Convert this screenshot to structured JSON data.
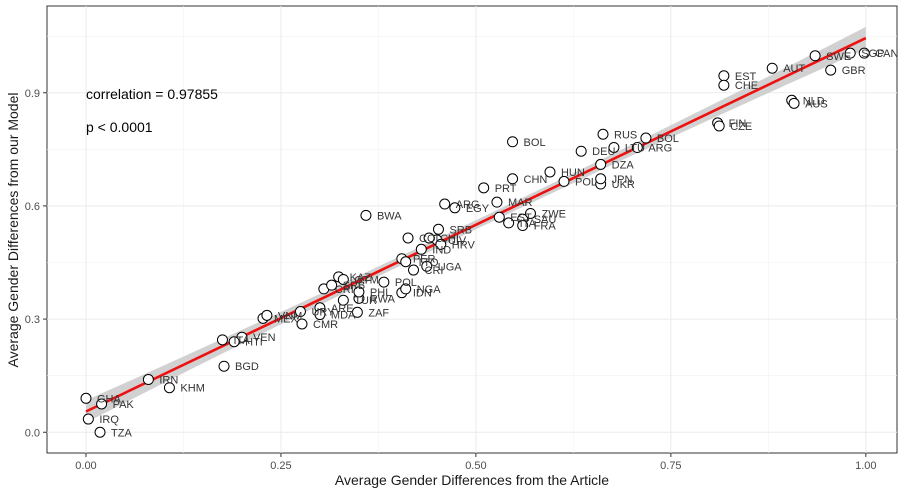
{
  "chart_data": {
    "type": "scatter",
    "xlabel": "Average Gender Differences from the Article",
    "ylabel": "Average Gender Differences from our Model",
    "xlim": [
      -0.05,
      1.04
    ],
    "ylim": [
      -0.055,
      1.13
    ],
    "x_ticks": [
      0.0,
      0.25,
      0.5,
      0.75,
      1.0
    ],
    "x_tick_labels": [
      "0.00",
      "0.25",
      "0.50",
      "0.75",
      "1.00"
    ],
    "y_ticks": [
      0.0,
      0.3,
      0.6,
      0.9
    ],
    "y_tick_labels": [
      "0.0",
      "0.3",
      "0.6",
      "0.9"
    ],
    "grid": true,
    "annotations": [
      "correlation = 0.97855",
      "p < 0.0001"
    ],
    "fit_line": {
      "color": "#ee1111",
      "start": [
        0.0,
        0.055
      ],
      "end": [
        1.0,
        1.045
      ],
      "ci_color": "#cccccc"
    },
    "points": [
      {
        "label": "GHA",
        "x": 0.0,
        "y": 0.09
      },
      {
        "label": "PAK",
        "x": 0.02,
        "y": 0.075
      },
      {
        "label": "IRQ",
        "x": 0.003,
        "y": 0.035
      },
      {
        "label": "TZA",
        "x": 0.018,
        "y": 0.0
      },
      {
        "label": "IRN",
        "x": 0.08,
        "y": 0.14
      },
      {
        "label": "KHM",
        "x": 0.107,
        "y": 0.118
      },
      {
        "label": "BGD",
        "x": 0.177,
        "y": 0.175
      },
      {
        "label": "ITA",
        "x": 0.175,
        "y": 0.245
      },
      {
        "label": "VEN",
        "x": 0.2,
        "y": 0.252
      },
      {
        "label": "HTI",
        "x": 0.19,
        "y": 0.24
      },
      {
        "label": "MEX",
        "x": 0.227,
        "y": 0.302
      },
      {
        "label": "VNM",
        "x": 0.232,
        "y": 0.31
      },
      {
        "label": "CMR",
        "x": 0.277,
        "y": 0.287
      },
      {
        "label": "URY",
        "x": 0.275,
        "y": 0.32
      },
      {
        "label": "ARE",
        "x": 0.3,
        "y": 0.33
      },
      {
        "label": "MDA",
        "x": 0.3,
        "y": 0.312
      },
      {
        "label": "ZAF",
        "x": 0.348,
        "y": 0.318
      },
      {
        "label": "TUR",
        "x": 0.33,
        "y": 0.35
      },
      {
        "label": "RWA",
        "x": 0.35,
        "y": 0.355
      },
      {
        "label": "PHL",
        "x": 0.35,
        "y": 0.372
      },
      {
        "label": "IDN",
        "x": 0.405,
        "y": 0.37
      },
      {
        "label": "CRI",
        "x": 0.305,
        "y": 0.38
      },
      {
        "label": "POL",
        "x": 0.382,
        "y": 0.398
      },
      {
        "label": "NGA",
        "x": 0.41,
        "y": 0.38
      },
      {
        "label": "KAZ",
        "x": 0.324,
        "y": 0.412
      },
      {
        "label": "GTM",
        "x": 0.33,
        "y": 0.405
      },
      {
        "label": "SRB",
        "x": 0.315,
        "y": 0.39
      },
      {
        "label": "CRI",
        "x": 0.42,
        "y": 0.43
      },
      {
        "label": "UGA",
        "x": 0.437,
        "y": 0.44
      },
      {
        "label": "PER",
        "x": 0.405,
        "y": 0.46
      },
      {
        "label": "TTO",
        "x": 0.41,
        "y": 0.452
      },
      {
        "label": "IND",
        "x": 0.43,
        "y": 0.485
      },
      {
        "label": "CIV",
        "x": 0.45,
        "y": 0.51
      },
      {
        "label": "HRV",
        "x": 0.455,
        "y": 0.498
      },
      {
        "label": "SRB",
        "x": 0.452,
        "y": 0.538
      },
      {
        "label": "COL",
        "x": 0.413,
        "y": 0.515
      },
      {
        "label": "CHL",
        "x": 0.44,
        "y": 0.515
      },
      {
        "label": "BWA",
        "x": 0.359,
        "y": 0.575
      },
      {
        "label": "ARG",
        "x": 0.46,
        "y": 0.605
      },
      {
        "label": "EGY",
        "x": 0.473,
        "y": 0.595
      },
      {
        "label": "MAR",
        "x": 0.527,
        "y": 0.61
      },
      {
        "label": "EST",
        "x": 0.53,
        "y": 0.57
      },
      {
        "label": "SAU",
        "x": 0.56,
        "y": 0.565
      },
      {
        "label": "ZWE",
        "x": 0.57,
        "y": 0.58
      },
      {
        "label": "ITA",
        "x": 0.542,
        "y": 0.555
      },
      {
        "label": "FRA",
        "x": 0.56,
        "y": 0.548
      },
      {
        "label": "PRT",
        "x": 0.51,
        "y": 0.648
      },
      {
        "label": "CHN",
        "x": 0.547,
        "y": 0.672
      },
      {
        "label": "HUN",
        "x": 0.595,
        "y": 0.69
      },
      {
        "label": "POL",
        "x": 0.613,
        "y": 0.665
      },
      {
        "label": "UKR",
        "x": 0.66,
        "y": 0.658
      },
      {
        "label": "JPN",
        "x": 0.66,
        "y": 0.672
      },
      {
        "label": "DZA",
        "x": 0.66,
        "y": 0.71
      },
      {
        "label": "DEU",
        "x": 0.635,
        "y": 0.745
      },
      {
        "label": "LTU",
        "x": 0.677,
        "y": 0.755
      },
      {
        "label": "BOL",
        "x": 0.547,
        "y": 0.77
      },
      {
        "label": "RUS",
        "x": 0.663,
        "y": 0.79
      },
      {
        "label": "ARG",
        "x": 0.707,
        "y": 0.755
      },
      {
        "label": "BOL",
        "x": 0.718,
        "y": 0.78
      },
      {
        "label": "FIN",
        "x": 0.81,
        "y": 0.82
      },
      {
        "label": "CZE",
        "x": 0.812,
        "y": 0.812
      },
      {
        "label": "EST",
        "x": 0.818,
        "y": 0.945
      },
      {
        "label": "CHE",
        "x": 0.818,
        "y": 0.92
      },
      {
        "label": "AUT",
        "x": 0.88,
        "y": 0.965
      },
      {
        "label": "NLD",
        "x": 0.905,
        "y": 0.88
      },
      {
        "label": "AUS",
        "x": 0.908,
        "y": 0.872
      },
      {
        "label": "SWE",
        "x": 0.935,
        "y": 0.998
      },
      {
        "label": "GBR",
        "x": 0.955,
        "y": 0.96
      },
      {
        "label": "SGP",
        "x": 0.98,
        "y": 1.005
      },
      {
        "label": "CAN",
        "x": 0.998,
        "y": 1.005
      }
    ]
  }
}
